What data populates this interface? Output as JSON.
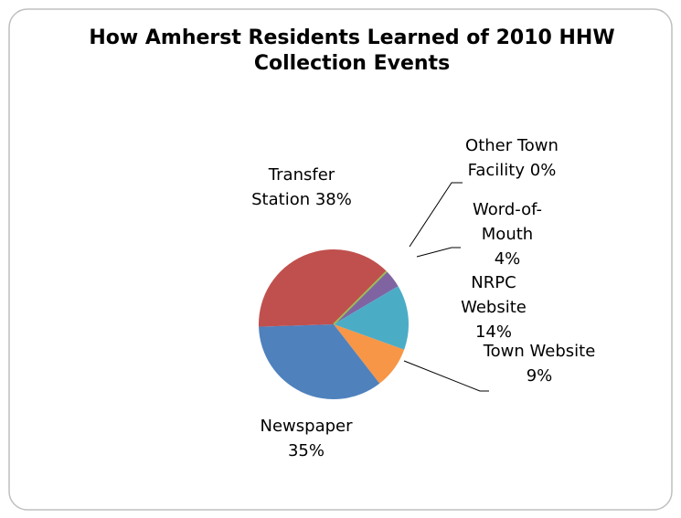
{
  "chart_data": {
    "type": "pie",
    "title": "How Amherst Residents Learned of 2010 HHW Collection Events",
    "categories": [
      "Word-of-Mouth",
      "NRPC Website",
      "Town Website",
      "Newspaper",
      "Transfer Station",
      "Other Town Facility"
    ],
    "values": [
      4,
      14,
      9,
      35,
      38,
      0
    ],
    "value_labels": [
      "4%",
      "14%",
      "9%",
      "35%",
      "38%",
      "0%"
    ],
    "colors": [
      "#8064a2",
      "#4bacc6",
      "#f79646",
      "#4f81bd",
      "#c0504d",
      "#9bbb59"
    ]
  }
}
